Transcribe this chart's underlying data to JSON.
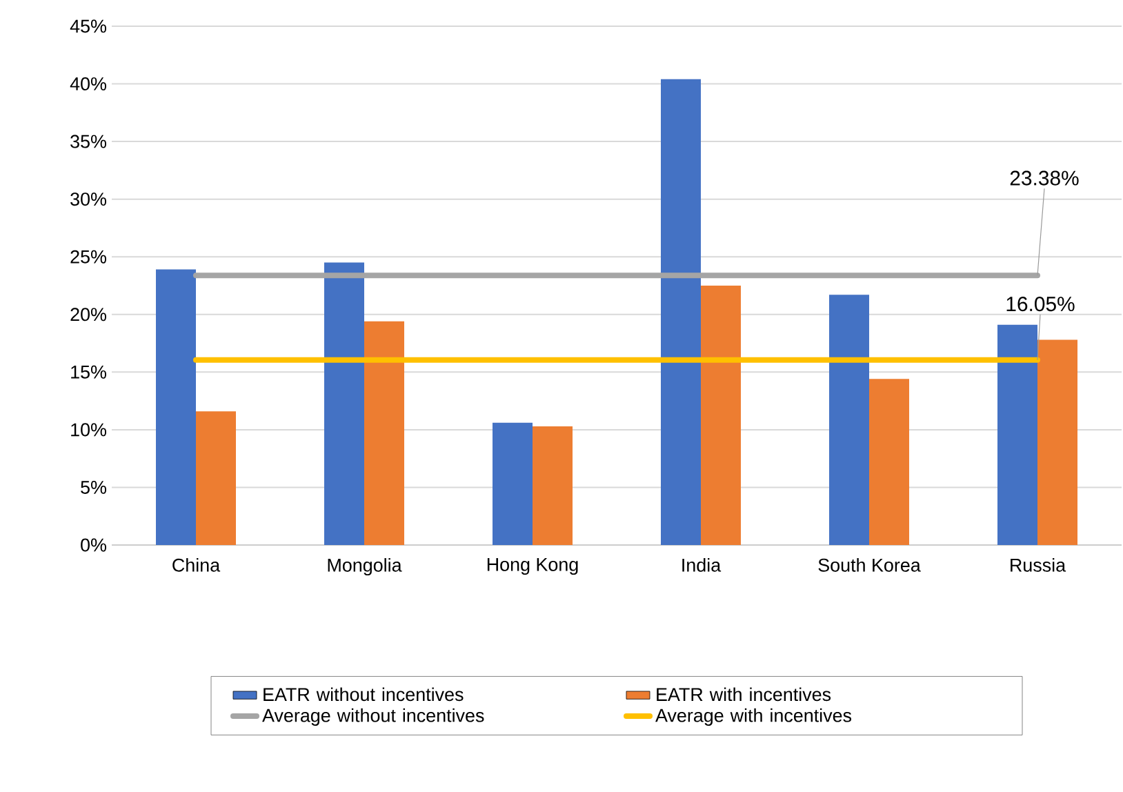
{
  "chart_data": {
    "type": "bar",
    "categories": [
      "China",
      "Mongolia",
      "Hong Kong",
      "India",
      "South Korea",
      "Russia"
    ],
    "series": [
      {
        "name": "EATR without incentives",
        "color": "#4472c4",
        "values": [
          23.9,
          24.5,
          10.6,
          40.4,
          21.7,
          19.1
        ]
      },
      {
        "name": "EATR with incentives",
        "color": "#ed7d31",
        "values": [
          11.6,
          19.4,
          10.3,
          22.5,
          14.4,
          17.8
        ]
      },
      {
        "name": "Average without incentives",
        "type": "line",
        "color": "#a5a5a5",
        "values": [
          23.38,
          23.38,
          23.38,
          23.38,
          23.38,
          23.38
        ],
        "value_labels": [
          null,
          null,
          null,
          null,
          null,
          "23.38%"
        ]
      },
      {
        "name": "Average with incentives",
        "type": "line",
        "color": "#ffc000",
        "values": [
          16.05,
          16.05,
          16.05,
          16.05,
          16.05,
          16.05
        ],
        "value_labels": [
          null,
          null,
          null,
          null,
          null,
          "16.05%"
        ]
      }
    ],
    "ylim": [
      0,
      45
    ],
    "yticks": [
      {
        "value": 0,
        "label": "0%"
      },
      {
        "value": 5,
        "label": "5%"
      },
      {
        "value": 10,
        "label": "10%"
      },
      {
        "value": 15,
        "label": "15%"
      },
      {
        "value": 20,
        "label": "20%"
      },
      {
        "value": 25,
        "label": "25%"
      },
      {
        "value": 30,
        "label": "30%"
      },
      {
        "value": 35,
        "label": "35%"
      },
      {
        "value": 40,
        "label": "40%"
      },
      {
        "value": 45,
        "label": "45%"
      }
    ],
    "grid": "y",
    "legend": "bottom"
  }
}
